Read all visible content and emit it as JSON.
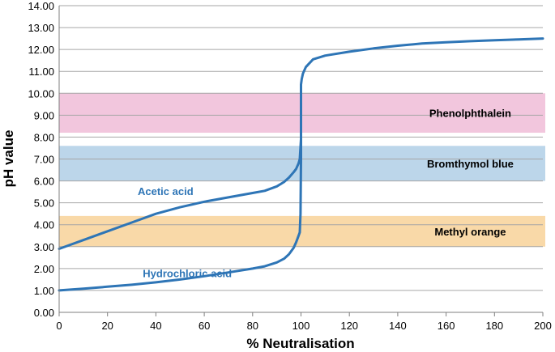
{
  "chart_data": {
    "type": "line",
    "title": "",
    "xlabel": "% Neutralisation",
    "ylabel": "pH value",
    "xlim": [
      0,
      200
    ],
    "ylim": [
      0,
      14
    ],
    "x_ticks": [
      "0",
      "20",
      "40",
      "60",
      "80",
      "100",
      "120",
      "140",
      "160",
      "180",
      "200"
    ],
    "y_ticks": [
      "0.00",
      "1.00",
      "2.00",
      "3.00",
      "4.00",
      "5.00",
      "6.00",
      "7.00",
      "8.00",
      "9.00",
      "10.00",
      "11.00",
      "12.00",
      "13.00",
      "14.00"
    ],
    "grid": "horizontal",
    "colors": {
      "curve": "#2e75b6",
      "phenolphthalein": "#f2c6dd",
      "bromthymol": "#bcd6ea",
      "methyl_orange": "#f9d9a8",
      "grid": "#a6a6a6"
    },
    "bands": [
      {
        "label": "Phenolphthalein",
        "ymin": 8.2,
        "ymax": 10.0,
        "color": "#f2c6dd"
      },
      {
        "label": "Bromthymol blue",
        "ymin": 6.0,
        "ymax": 7.6,
        "color": "#bcd6ea"
      },
      {
        "label": "Methyl orange",
        "ymin": 3.0,
        "ymax": 4.4,
        "color": "#f9d9a8"
      }
    ],
    "series": [
      {
        "name": "Acetic acid",
        "color": "#2e75b6",
        "x": [
          0,
          10,
          20,
          30,
          40,
          50,
          60,
          70,
          80,
          85,
          90,
          93,
          95,
          97,
          98,
          99,
          99.5,
          100
        ],
        "y": [
          2.9,
          3.3,
          3.7,
          4.1,
          4.5,
          4.8,
          5.05,
          5.25,
          5.45,
          5.55,
          5.75,
          5.95,
          6.15,
          6.4,
          6.55,
          6.8,
          7.0,
          7.9
        ]
      },
      {
        "name": "Hydrochloric acid",
        "color": "#2e75b6",
        "x": [
          0,
          10,
          20,
          30,
          40,
          50,
          60,
          70,
          80,
          85,
          90,
          93,
          95,
          97,
          98,
          99,
          99.5,
          99.8,
          100,
          100,
          100.3,
          100.8,
          102,
          105,
          110,
          120,
          130,
          140,
          150,
          160,
          170,
          180,
          190,
          200
        ],
        "y": [
          1.0,
          1.08,
          1.17,
          1.26,
          1.37,
          1.5,
          1.65,
          1.82,
          2.0,
          2.1,
          2.28,
          2.45,
          2.65,
          2.95,
          3.2,
          3.5,
          3.65,
          4.5,
          7.0,
          10.4,
          10.65,
          10.9,
          11.2,
          11.55,
          11.72,
          11.9,
          12.05,
          12.17,
          12.27,
          12.33,
          12.38,
          12.42,
          12.46,
          12.5
        ]
      }
    ],
    "annotations": [
      {
        "text": "Acetic acid",
        "x": 44,
        "y": 5.35
      },
      {
        "text": "Hydrochloric acid",
        "x": 53,
        "y": 1.6
      }
    ]
  }
}
